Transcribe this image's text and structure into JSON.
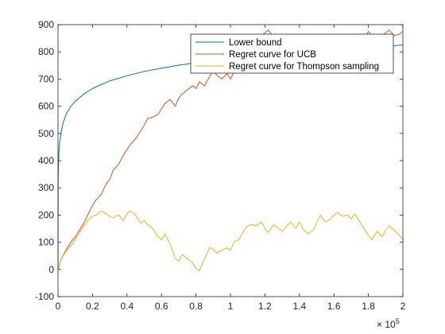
{
  "colors": {
    "lower_bound": "#0072BD",
    "ucb": "#D95319",
    "thompson": "#EDB120",
    "axis": "#262626",
    "background": "#ffffff"
  },
  "chart_data": {
    "type": "line",
    "title": "",
    "xlabel": "",
    "ylabel": "",
    "xlim": [
      0,
      200000
    ],
    "ylim": [
      -100,
      900
    ],
    "x_ticks": [
      0,
      20000,
      40000,
      60000,
      80000,
      100000,
      120000,
      140000,
      160000,
      180000,
      200000
    ],
    "x_tick_labels": [
      "0",
      "0.2",
      "0.4",
      "0.6",
      "0.8",
      "1",
      "1.2",
      "1.4",
      "1.6",
      "1.8",
      "2"
    ],
    "x_exponent_base": "× 10",
    "x_exponent_power": "5",
    "y_ticks": [
      -100,
      0,
      100,
      200,
      300,
      400,
      500,
      600,
      700,
      800,
      900
    ],
    "y_tick_labels": [
      "-100",
      "0",
      "100",
      "200",
      "300",
      "400",
      "500",
      "600",
      "700",
      "800",
      "900"
    ],
    "grid": false,
    "legend_position": "top-right",
    "series": [
      {
        "name": "Lower bound",
        "color": "#0072BD",
        "x": [
          0,
          100,
          500,
          1000,
          2000,
          3000,
          5000,
          7500,
          10000,
          15000,
          20000,
          25000,
          30000,
          40000,
          50000,
          60000,
          70000,
          80000,
          90000,
          100000,
          110000,
          120000,
          130000,
          140000,
          150000,
          160000,
          170000,
          180000,
          190000,
          200000
        ],
        "y": [
          0,
          340,
          430,
          470,
          510,
          540,
          575,
          600,
          618,
          645,
          665,
          680,
          693,
          712,
          728,
          740,
          751,
          760,
          768,
          775,
          782,
          788,
          794,
          799,
          804,
          809,
          813,
          817,
          821,
          825
        ]
      },
      {
        "name": "Regret curve for UCB",
        "color": "#D95319",
        "x": [
          0,
          2000,
          5000,
          8000,
          10000,
          12000,
          15000,
          18000,
          20000,
          22000,
          25000,
          28000,
          30000,
          32000,
          35000,
          38000,
          40000,
          42000,
          45000,
          48000,
          50000,
          52000,
          55000,
          58000,
          60000,
          62000,
          65000,
          68000,
          70000,
          72000,
          75000,
          78000,
          80000,
          82000,
          85000,
          88000,
          90000,
          92000,
          95000,
          98000,
          100000,
          102000,
          105000,
          108000,
          110000,
          112000,
          115000,
          118000,
          120000,
          122000,
          125000,
          128000,
          130000,
          132000,
          135000,
          138000,
          140000,
          142000,
          145000,
          148000,
          150000,
          152000,
          155000,
          158000,
          160000,
          162000,
          165000,
          168000,
          170000,
          172000,
          175000,
          178000,
          180000,
          182000,
          185000,
          188000,
          190000,
          192000,
          195000,
          198000,
          200000
        ],
        "y": [
          0,
          40,
          75,
          105,
          120,
          140,
          170,
          210,
          235,
          255,
          275,
          315,
          330,
          365,
          385,
          420,
          440,
          460,
          480,
          510,
          530,
          555,
          560,
          570,
          590,
          610,
          625,
          600,
          630,
          645,
          660,
          675,
          665,
          690,
          675,
          710,
          730,
          715,
          700,
          720,
          700,
          725,
          740,
          760,
          790,
          800,
          835,
          860,
          870,
          880,
          855,
          850,
          860,
          840,
          830,
          825,
          845,
          860,
          850,
          835,
          840,
          855,
          850,
          845,
          850,
          830,
          855,
          860,
          845,
          830,
          855,
          850,
          875,
          860,
          850,
          855,
          870,
          880,
          860,
          865,
          875
        ]
      },
      {
        "name": "Regret curve for Thompson sampling",
        "color": "#EDB120",
        "x": [
          0,
          2000,
          5000,
          8000,
          10000,
          12000,
          15000,
          18000,
          20000,
          22000,
          25000,
          28000,
          30000,
          32000,
          35000,
          38000,
          40000,
          42000,
          45000,
          48000,
          50000,
          52000,
          55000,
          58000,
          60000,
          62000,
          65000,
          68000,
          70000,
          72000,
          75000,
          78000,
          80000,
          82000,
          85000,
          88000,
          90000,
          92000,
          95000,
          98000,
          100000,
          102000,
          105000,
          108000,
          110000,
          112000,
          115000,
          118000,
          120000,
          122000,
          125000,
          128000,
          130000,
          132000,
          135000,
          138000,
          140000,
          142000,
          145000,
          148000,
          150000,
          152000,
          155000,
          158000,
          160000,
          162000,
          165000,
          168000,
          170000,
          172000,
          175000,
          178000,
          180000,
          182000,
          185000,
          188000,
          190000,
          192000,
          195000,
          198000,
          200000
        ],
        "y": [
          0,
          40,
          70,
          90,
          110,
          130,
          160,
          185,
          195,
          200,
          215,
          205,
          195,
          190,
          200,
          180,
          205,
          215,
          200,
          170,
          180,
          165,
          150,
          120,
          110,
          130,
          95,
          40,
          30,
          55,
          40,
          25,
          5,
          -5,
          40,
          80,
          75,
          60,
          70,
          80,
          70,
          100,
          110,
          145,
          160,
          165,
          160,
          175,
          150,
          135,
          165,
          150,
          140,
          155,
          175,
          150,
          175,
          150,
          130,
          145,
          170,
          200,
          175,
          185,
          200,
          210,
          195,
          200,
          185,
          205,
          175,
          145,
          125,
          110,
          140,
          120,
          145,
          160,
          145,
          125,
          110
        ]
      }
    ]
  }
}
